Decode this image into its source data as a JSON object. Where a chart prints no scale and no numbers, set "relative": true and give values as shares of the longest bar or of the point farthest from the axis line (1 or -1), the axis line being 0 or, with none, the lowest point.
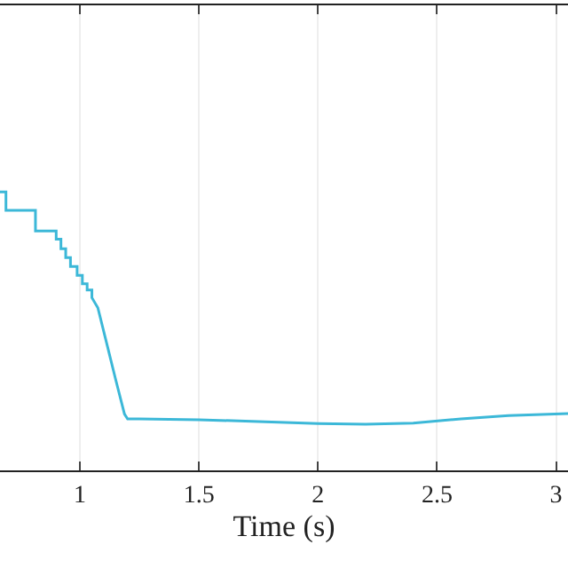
{
  "chart_data": {
    "type": "line",
    "xlabel": "Time (s)",
    "relative": true,
    "grid": true,
    "xlim": [
      0.664,
      3.05
    ],
    "xticks": [
      1,
      1.5,
      2,
      2.5,
      3
    ],
    "x": [
      0.664,
      0.689,
      0.689,
      0.813,
      0.813,
      0.9,
      0.9,
      0.92,
      0.92,
      0.94,
      0.94,
      0.96,
      0.96,
      0.988,
      0.988,
      1.01,
      1.01,
      1.03,
      1.03,
      1.05,
      1.05,
      1.075,
      1.112,
      1.149,
      1.187,
      1.2,
      1.25,
      1.5,
      1.75,
      2.0,
      2.2,
      2.4,
      2.6,
      2.8,
      3.05
    ],
    "series": [
      {
        "color": "#3cb8d8",
        "values": [
          1.0,
          1.0,
          0.934,
          0.934,
          0.86,
          0.86,
          0.83,
          0.83,
          0.796,
          0.796,
          0.764,
          0.764,
          0.732,
          0.732,
          0.7,
          0.7,
          0.67,
          0.67,
          0.648,
          0.648,
          0.62,
          0.584,
          0.457,
          0.329,
          0.202,
          0.185,
          0.185,
          0.182,
          0.175,
          0.168,
          0.166,
          0.17,
          0.185,
          0.197,
          0.204
        ]
      }
    ]
  }
}
